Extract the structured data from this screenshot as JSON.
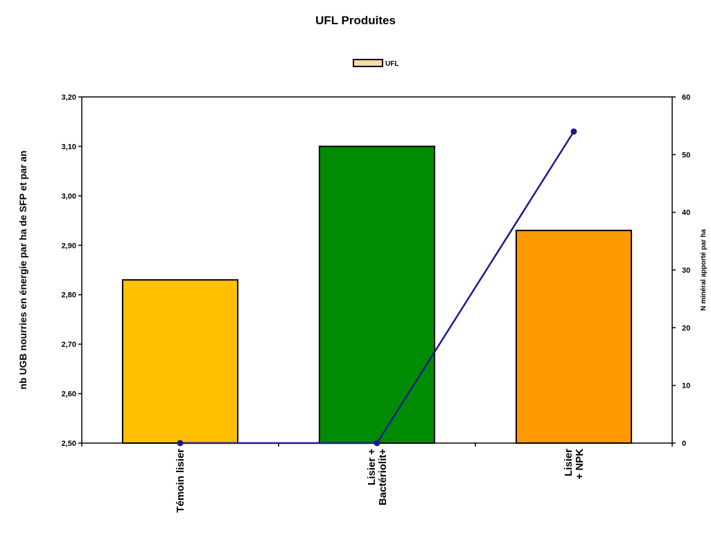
{
  "chart_data": {
    "type": "bar",
    "title": "UFL Produites",
    "legend": {
      "position": "top",
      "entries": [
        {
          "label": "UFL",
          "color": "#fcd9a8"
        }
      ]
    },
    "categories": [
      [
        "Témoin lisier"
      ],
      [
        "Lisier +",
        "Bactériolit+"
      ],
      [
        "Lisier",
        "+ NPK"
      ]
    ],
    "series": [
      {
        "name": "UFL",
        "type": "bar",
        "axis": "left",
        "values": [
          2.83,
          3.1,
          2.93
        ],
        "colors": [
          "#ffbf00",
          "#008c00",
          "#ff9900"
        ]
      },
      {
        "type": "line",
        "axis": "right",
        "values": [
          0,
          0,
          54
        ],
        "color": "#1a1a8c"
      }
    ],
    "ylabel": "nb UGB nourries en énergie par ha de SFP et par an",
    "y2label": "N minéral apporté par ha",
    "ylim": [
      2.5,
      3.2
    ],
    "y2lim": [
      0,
      60
    ],
    "yticks": [
      "2,50",
      "2,60",
      "2,70",
      "2,80",
      "2,90",
      "3,00",
      "3,10",
      "3,20"
    ],
    "y2ticks": [
      "0",
      "10",
      "20",
      "30",
      "40",
      "50",
      "60"
    ],
    "grid": false
  }
}
